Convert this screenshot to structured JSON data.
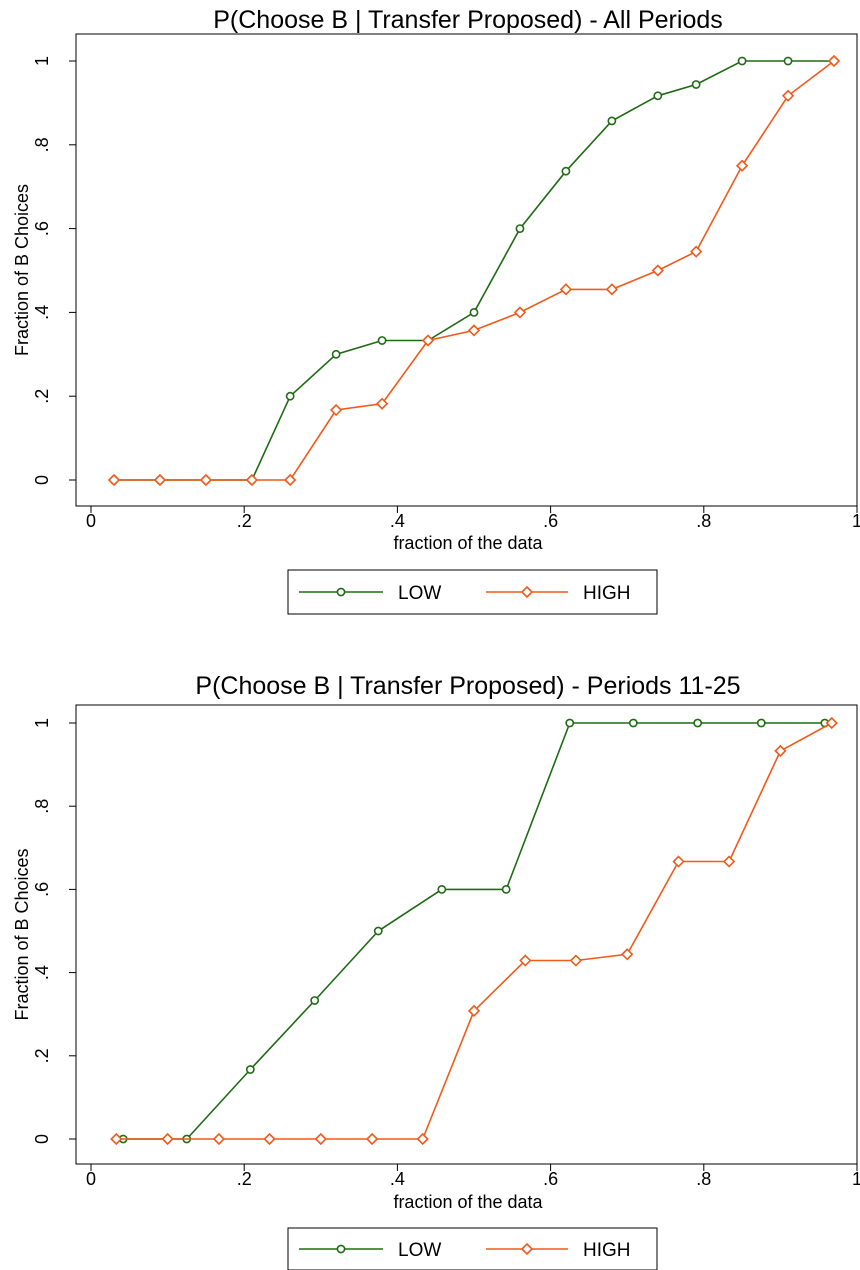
{
  "chart_data": [
    {
      "type": "line",
      "title": "P(Choose B | Transfer Proposed) - All Periods",
      "xlabel": "fraction of the data",
      "ylabel": "Fraction of B Choices",
      "xlim": [
        0,
        1
      ],
      "ylim": [
        0,
        1
      ],
      "x_ticks": [
        "0",
        ".2",
        ".4",
        ".6",
        ".8",
        "1"
      ],
      "y_ticks": [
        "0",
        ".2",
        ".4",
        ".6",
        ".8",
        "1"
      ],
      "grid": false,
      "legend_position": "bottom",
      "series": [
        {
          "name": "LOW",
          "color": "#1e6b14",
          "marker": "circle",
          "x": [
            0.03,
            0.09,
            0.15,
            0.21,
            0.26,
            0.32,
            0.38,
            0.44,
            0.5,
            0.56,
            0.62,
            0.68,
            0.74,
            0.79,
            0.85,
            0.91,
            0.97
          ],
          "y": [
            0,
            0,
            0,
            0,
            0.2,
            0.3,
            0.333,
            0.333,
            0.4,
            0.6,
            0.737,
            0.857,
            0.917,
            0.944,
            1,
            1,
            1
          ]
        },
        {
          "name": "HIGH",
          "color": "#f05a1a",
          "marker": "diamond",
          "x": [
            0.03,
            0.09,
            0.15,
            0.21,
            0.26,
            0.32,
            0.38,
            0.44,
            0.5,
            0.56,
            0.62,
            0.68,
            0.74,
            0.79,
            0.85,
            0.91,
            0.97
          ],
          "y": [
            0,
            0,
            0,
            0,
            0,
            0.167,
            0.182,
            0.333,
            0.357,
            0.4,
            0.455,
            0.455,
            0.5,
            0.545,
            0.75,
            0.917,
            1
          ]
        }
      ]
    },
    {
      "type": "line",
      "title": "P(Choose B | Transfer Proposed) - Periods 11-25",
      "xlabel": "fraction of the data",
      "ylabel": "Fraction of B Choices",
      "xlim": [
        0,
        1
      ],
      "ylim": [
        0,
        1
      ],
      "x_ticks": [
        "0",
        ".2",
        ".4",
        ".6",
        ".8",
        "1"
      ],
      "y_ticks": [
        "0",
        ".2",
        ".4",
        ".6",
        ".8",
        "1"
      ],
      "grid": false,
      "legend_position": "bottom",
      "series": [
        {
          "name": "LOW",
          "color": "#1e6b14",
          "marker": "circle",
          "x": [
            0.042,
            0.125,
            0.208,
            0.292,
            0.375,
            0.458,
            0.542,
            0.625,
            0.708,
            0.792,
            0.875,
            0.958
          ],
          "y": [
            0,
            0,
            0.167,
            0.333,
            0.5,
            0.6,
            0.6,
            1,
            1,
            1,
            1,
            1
          ]
        },
        {
          "name": "HIGH",
          "color": "#f05a1a",
          "marker": "diamond",
          "x": [
            0.033,
            0.1,
            0.167,
            0.233,
            0.3,
            0.367,
            0.433,
            0.5,
            0.567,
            0.633,
            0.7,
            0.767,
            0.833,
            0.9,
            0.967
          ],
          "y": [
            0,
            0,
            0,
            0,
            0,
            0,
            0,
            0.308,
            0.429,
            0.429,
            0.444,
            0.667,
            0.667,
            0.933,
            1
          ]
        }
      ]
    }
  ]
}
